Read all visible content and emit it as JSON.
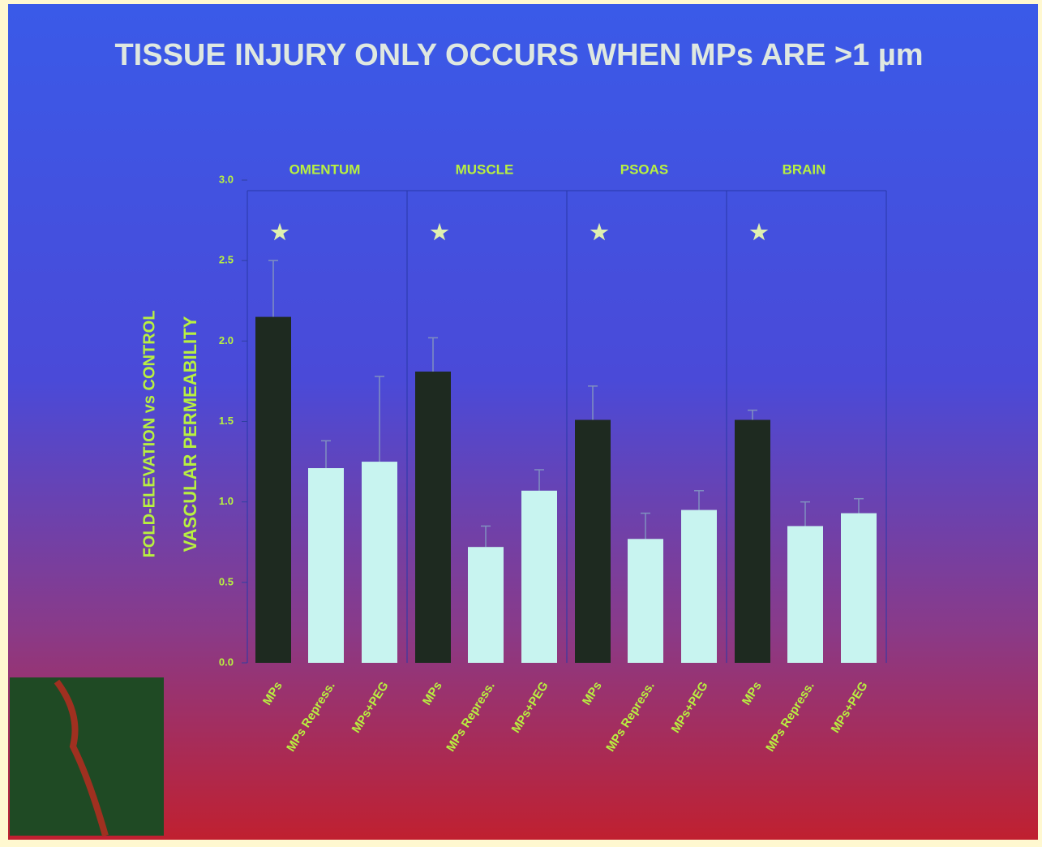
{
  "chart_data": {
    "type": "grouped_bar",
    "title": "TISSUE INJURY ONLY OCCURS WHEN MPs ARE >1 µm",
    "y_label": [
      "FOLD-ELEVATION vs CONTROL",
      "VASCULAR PERMEABILITY"
    ],
    "ylim": [
      0,
      3
    ],
    "yticks": [
      {
        "value": 0,
        "label": "0.0"
      },
      {
        "value": 0.5,
        "label": "0.5"
      },
      {
        "value": 1,
        "label": "1.0"
      },
      {
        "value": 1.5,
        "label": "1.5"
      },
      {
        "value": 2,
        "label": "2.0"
      },
      {
        "value": 2.5,
        "label": "2.5"
      },
      {
        "value": 3,
        "label": "3.0"
      }
    ],
    "grid": false,
    "colors": [
      "#1e2a20",
      "#c8f4f0",
      "#c8f4f0"
    ],
    "groups": [
      {
        "name": "OMENTUM",
        "annotation": "★",
        "categories": [
          "MPs",
          "MPs Repress.",
          "MPs+PEG"
        ],
        "values": [
          2.15,
          1.21,
          1.25
        ],
        "errors": [
          0.35,
          0.17,
          0.53
        ]
      },
      {
        "name": "MUSCLE",
        "annotation": "★",
        "categories": [
          "MPs",
          "MPs Repress.",
          "MPs+PEG"
        ],
        "values": [
          1.81,
          0.72,
          1.07
        ],
        "errors": [
          0.21,
          0.13,
          0.13
        ]
      },
      {
        "name": "PSOAS",
        "annotation": "★",
        "categories": [
          "MPs",
          "MPs Repress.",
          "MPs+PEG"
        ],
        "values": [
          1.51,
          0.77,
          0.95
        ],
        "errors": [
          0.21,
          0.16,
          0.12
        ]
      },
      {
        "name": "BRAIN",
        "annotation": "★",
        "categories": [
          "MPs",
          "MPs Repress.",
          "MPs+PEG"
        ],
        "values": [
          1.51,
          0.85,
          0.93
        ],
        "errors": [
          0.06,
          0.15,
          0.09
        ]
      }
    ]
  }
}
